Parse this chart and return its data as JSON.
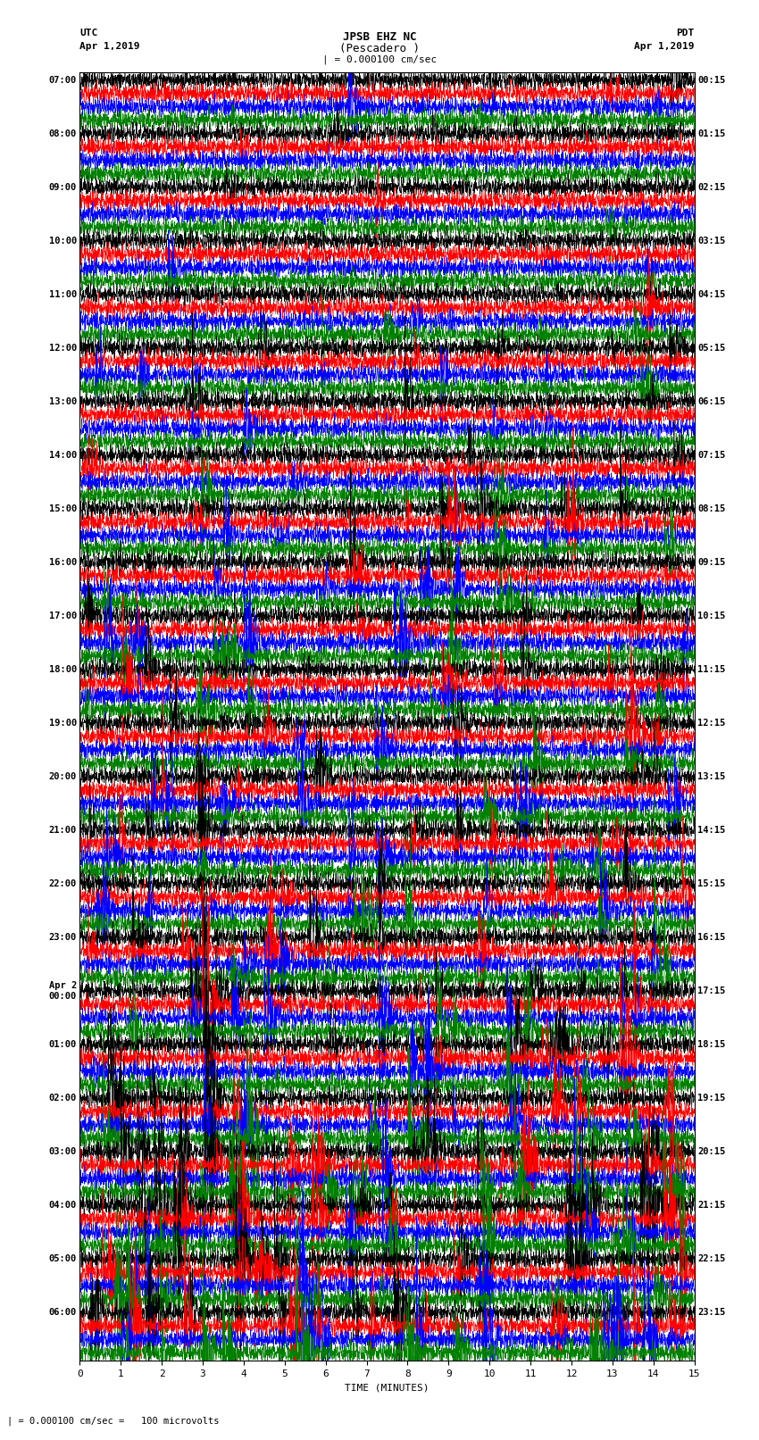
{
  "title_line1": "JPSB EHZ NC",
  "title_line2": "(Pescadero )",
  "scale_label": "| = 0.000100 cm/sec",
  "utc_label": "UTC",
  "utc_date": "Apr 1,2019",
  "pdt_label": "PDT",
  "pdt_date": "Apr 1,2019",
  "xlabel": "TIME (MINUTES)",
  "footnote": "| = 0.000100 cm/sec =   100 microvolts",
  "xlim": [
    0,
    15
  ],
  "xticks": [
    0,
    1,
    2,
    3,
    4,
    5,
    6,
    7,
    8,
    9,
    10,
    11,
    12,
    13,
    14,
    15
  ],
  "colors": [
    "black",
    "red",
    "blue",
    "green"
  ],
  "utc_times_labeled": [
    "07:00",
    "08:00",
    "09:00",
    "10:00",
    "11:00",
    "12:00",
    "13:00",
    "14:00",
    "15:00",
    "16:00",
    "17:00",
    "18:00",
    "19:00",
    "20:00",
    "21:00",
    "22:00",
    "23:00",
    "Apr 2\n00:00",
    "01:00",
    "02:00",
    "03:00",
    "04:00",
    "05:00",
    "06:00"
  ],
  "pdt_times_labeled": [
    "00:15",
    "01:15",
    "02:15",
    "03:15",
    "04:15",
    "05:15",
    "06:15",
    "07:15",
    "08:15",
    "09:15",
    "10:15",
    "11:15",
    "12:15",
    "13:15",
    "14:15",
    "15:15",
    "16:15",
    "17:15",
    "18:15",
    "19:15",
    "20:15",
    "21:15",
    "22:15",
    "23:15"
  ],
  "n_rows": 96,
  "n_cols": 3000,
  "fig_width": 8.5,
  "fig_height": 16.13,
  "background_color": "white",
  "seed": 42
}
